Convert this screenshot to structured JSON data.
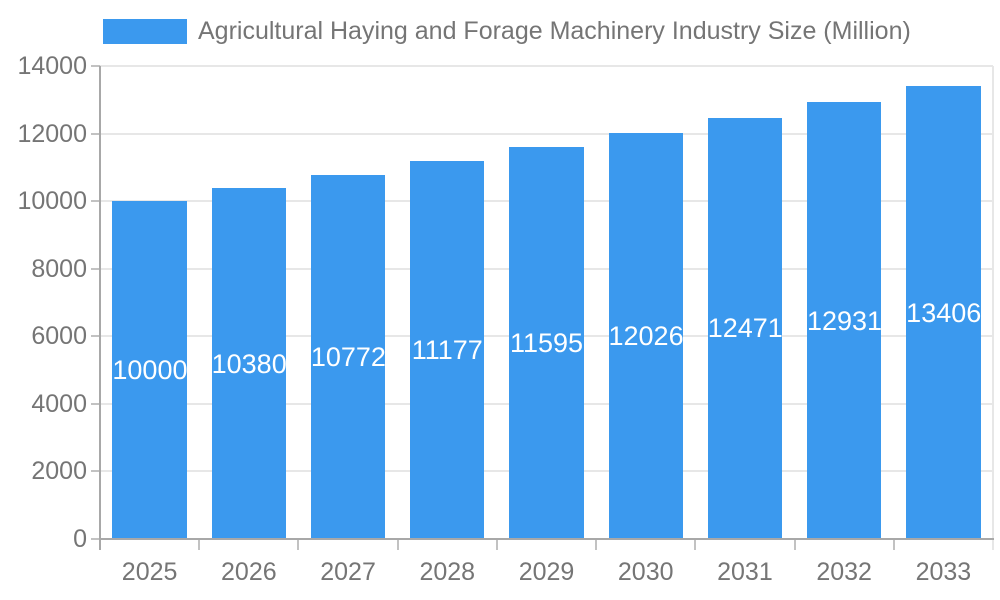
{
  "legend": {
    "position": "top",
    "items": [
      {
        "label": "Agricultural Haying and Forage Machinery Industry Size (Million)",
        "color": "#3B99EE"
      }
    ]
  },
  "chart_data": {
    "type": "bar",
    "categories": [
      "2025",
      "2026",
      "2027",
      "2028",
      "2029",
      "2030",
      "2031",
      "2032",
      "2033"
    ],
    "series": [
      {
        "name": "Agricultural Haying and Forage Machinery Industry Size (Million)",
        "values": [
          10000,
          10380,
          10772,
          11177,
          11595,
          12026,
          12471,
          12931,
          13406
        ],
        "color": "#3B99EE"
      }
    ],
    "xlabel": "",
    "ylabel": "",
    "ylim": [
      0,
      14000
    ],
    "yticks": [
      0,
      2000,
      4000,
      6000,
      8000,
      10000,
      12000,
      14000
    ],
    "grid": true,
    "legend_position": "top",
    "value_labels": {
      "position": "inside-middle",
      "color": "#FFFFFF"
    }
  },
  "style": {
    "background": "#FFFFFF",
    "bar_color": "#3B99EE",
    "axis_line_color": "#A8A8A8",
    "grid_line_color": "#E7E7E7",
    "tick_color": "#C2C2C2",
    "axis_text_color": "#757575",
    "value_text_color": "#FFFFFF"
  }
}
